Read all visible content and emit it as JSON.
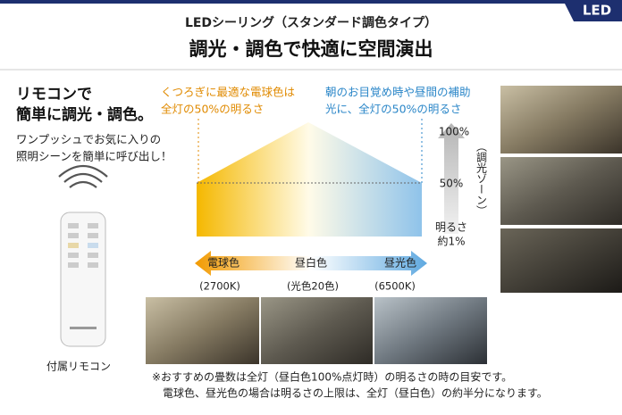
{
  "header": {
    "badge": "LED",
    "title": "LEDシーリング（スタンダード調色タイプ）",
    "subtitle": "調光・調色で快適に空間演出"
  },
  "remote": {
    "heading": [
      "リモコンで",
      "簡単に調光・調色。"
    ],
    "description": [
      "ワンプッシュでお気に入りの",
      "照明シーンを簡単に呼び出し！"
    ],
    "caption": "付属リモコン"
  },
  "diagram": {
    "left_note": [
      "くつろぎに最適な電球色は",
      "全灯の50%の明るさ"
    ],
    "right_note": [
      "朝のお目覚め時や昼間の補助",
      "光に、全灯の50%の明るさ"
    ],
    "brightness": {
      "top": "100%",
      "middle": "50%",
      "bottom": [
        "明るさ",
        "約1%"
      ],
      "zone": "（調光ゾーン）"
    },
    "colors": [
      "電球色",
      "昼白色",
      "昼光色"
    ],
    "kelvin": [
      "(2700K)",
      "(光色20色)",
      "(6500K)"
    ]
  },
  "footnotes": [
    "※おすすめの畳数は全灯（昼白色100%点灯時）の明るさの時の目安です。",
    "電球色、昼光色の場合は明るさの上限は、全灯（昼白色）の約半分になります。"
  ]
}
